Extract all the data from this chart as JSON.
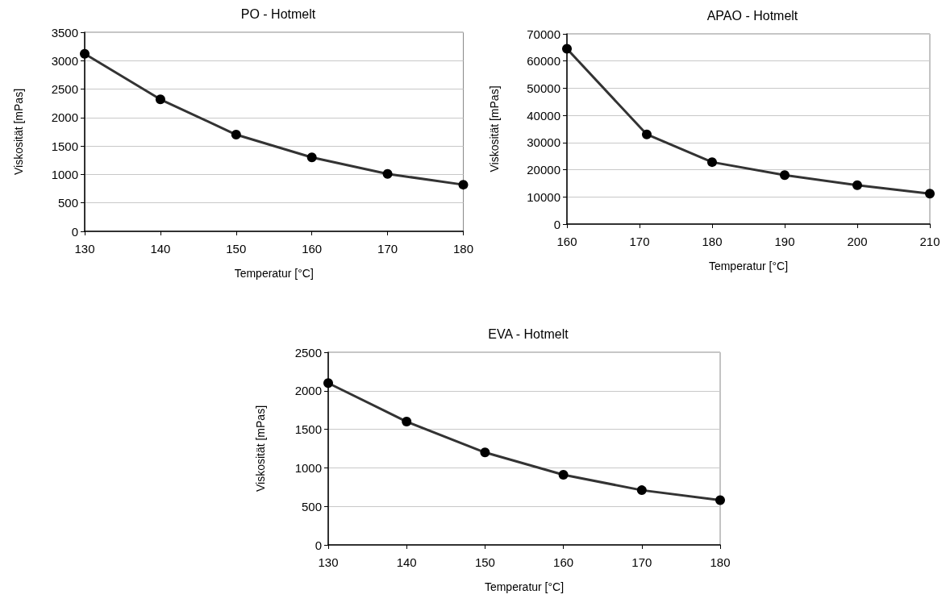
{
  "chart_data": [
    {
      "type": "line",
      "title": "PO - Hotmelt",
      "xlabel": "Temperatur [°C]",
      "ylabel": "Viskosität [mPas]",
      "x": [
        130,
        140,
        150,
        160,
        170,
        180
      ],
      "series": [
        {
          "color": "#333333",
          "values": [
            3120,
            2320,
            1700,
            1300,
            1010,
            820
          ]
        }
      ],
      "xlim": [
        130,
        180
      ],
      "xticks": [
        130,
        140,
        150,
        160,
        170,
        180
      ],
      "ylim": [
        0,
        3500
      ],
      "yticks": [
        0,
        500,
        1000,
        1500,
        2000,
        2500,
        3000,
        3500
      ],
      "grid": "y",
      "marker": "circle",
      "line_style": "solid"
    },
    {
      "type": "line",
      "title": "APAO - Hotmelt",
      "xlabel": "Temperatur [°C]",
      "ylabel": "Viskosität [mPas]",
      "x": [
        160,
        171,
        180,
        190,
        200,
        210
      ],
      "series": [
        {
          "color": "#333333",
          "values": [
            64500,
            33000,
            22800,
            18000,
            14300,
            11200
          ]
        }
      ],
      "xlim": [
        160,
        210
      ],
      "xticks": [
        160,
        170,
        180,
        190,
        200,
        210
      ],
      "ylim": [
        0,
        70000
      ],
      "yticks": [
        0,
        10000,
        20000,
        30000,
        40000,
        50000,
        60000,
        70000
      ],
      "grid": "y",
      "marker": "circle",
      "line_style": "solid"
    },
    {
      "type": "line",
      "title": "EVA - Hotmelt",
      "xlabel": "Temperatur [°C]",
      "ylabel": "Viskosität [mPas]",
      "x": [
        130,
        140,
        150,
        160,
        170,
        180
      ],
      "series": [
        {
          "color": "#333333",
          "values": [
            2100,
            1600,
            1200,
            910,
            710,
            580
          ]
        }
      ],
      "xlim": [
        130,
        180
      ],
      "xticks": [
        130,
        140,
        150,
        160,
        170,
        180
      ],
      "ylim": [
        0,
        2500
      ],
      "yticks": [
        0,
        500,
        1000,
        1500,
        2000,
        2500
      ],
      "grid": "y",
      "marker": "circle",
      "line_style": "solid"
    }
  ]
}
